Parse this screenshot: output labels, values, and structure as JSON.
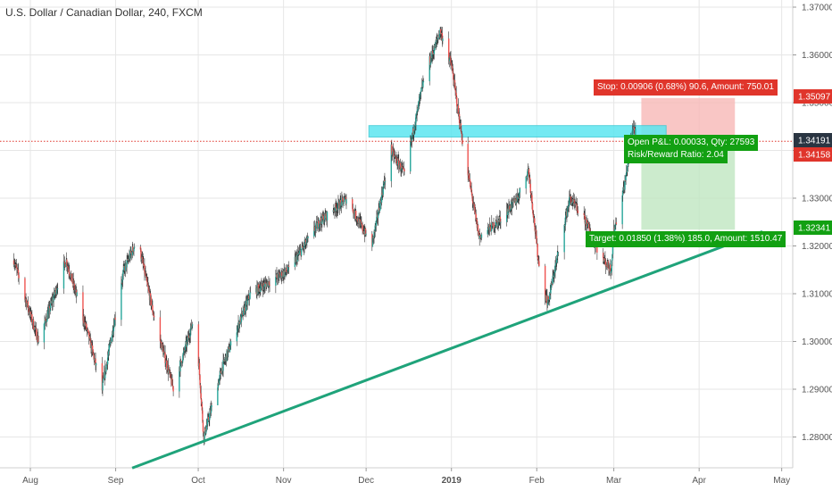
{
  "chart_data": {
    "type": "candlestick",
    "title": "U.S. Dollar / Canadian Dollar, 240, FXCM",
    "x_axis": {
      "tick_labels": [
        "Aug",
        "Sep",
        "Oct",
        "Nov",
        "Dec",
        "2019",
        "Feb",
        "Mar",
        "Apr",
        "May"
      ]
    },
    "y_axis": {
      "tick_labels": [
        "1.37000",
        "1.36000",
        "1.35000",
        "1.34000",
        "1.33000",
        "1.32000",
        "1.31000",
        "1.30000",
        "1.29000",
        "1.28000"
      ],
      "ylim": [
        1.2735,
        1.3715
      ]
    },
    "price_path": [
      {
        "date": "2018-07-26",
        "price": 1.317
      },
      {
        "date": "2018-08-04",
        "price": 1.3
      },
      {
        "date": "2018-08-14",
        "price": 1.317
      },
      {
        "date": "2018-08-22",
        "price": 1.3015
      },
      {
        "date": "2018-08-27",
        "price": 1.29
      },
      {
        "date": "2018-09-04",
        "price": 1.315
      },
      {
        "date": "2018-09-09",
        "price": 1.3215
      },
      {
        "date": "2018-09-15",
        "price": 1.305
      },
      {
        "date": "2018-09-22",
        "price": 1.29
      },
      {
        "date": "2018-09-30",
        "price": 1.306
      },
      {
        "date": "2018-10-03",
        "price": 1.28
      },
      {
        "date": "2018-10-10",
        "price": 1.295
      },
      {
        "date": "2018-10-20",
        "price": 1.31
      },
      {
        "date": "2018-11-03",
        "price": 1.315
      },
      {
        "date": "2018-11-14",
        "price": 1.325
      },
      {
        "date": "2018-11-24",
        "price": 1.33
      },
      {
        "date": "2018-12-03",
        "price": 1.32
      },
      {
        "date": "2018-12-10",
        "price": 1.34
      },
      {
        "date": "2018-12-15",
        "price": 1.335
      },
      {
        "date": "2018-12-22",
        "price": 1.355
      },
      {
        "date": "2018-12-28",
        "price": 1.365
      },
      {
        "date": "2019-01-01",
        "price": 1.358
      },
      {
        "date": "2019-01-05",
        "price": 1.342
      },
      {
        "date": "2019-01-11",
        "price": 1.322
      },
      {
        "date": "2019-01-18",
        "price": 1.325
      },
      {
        "date": "2019-01-25",
        "price": 1.33
      },
      {
        "date": "2019-01-29",
        "price": 1.336
      },
      {
        "date": "2019-02-02",
        "price": 1.315
      },
      {
        "date": "2019-02-05",
        "price": 1.308
      },
      {
        "date": "2019-02-13",
        "price": 1.33
      },
      {
        "date": "2019-02-19",
        "price": 1.325
      },
      {
        "date": "2019-02-24",
        "price": 1.318
      },
      {
        "date": "2019-02-28",
        "price": 1.315
      },
      {
        "date": "2019-03-01",
        "price": 1.323
      },
      {
        "date": "2019-03-05",
        "price": 1.333
      },
      {
        "date": "2019-03-08",
        "price": 1.345
      },
      {
        "date": "2019-03-10",
        "price": 1.342
      }
    ],
    "trendline": {
      "color": "#1fa37a",
      "points": [
        {
          "date": "2018-09-07",
          "price": 1.2735
        },
        {
          "date": "2019-04-24",
          "price": 1.323
        }
      ]
    },
    "zone": {
      "color": "#5ce6f0",
      "start": "2018-12-02",
      "end": "2019-03-20",
      "top": 1.3452,
      "bottom": 1.3428
    },
    "position": {
      "start": "2019-03-11",
      "end": "2019-04-14",
      "entry": 1.34191,
      "stop": 1.35097,
      "target": 1.32341
    },
    "current_price_line": 1.34191,
    "price_tags": [
      {
        "price": 1.35097,
        "label": "1.35097",
        "color": "#e0352b"
      },
      {
        "price": 1.34191,
        "label": "1.34191",
        "color": "#2a3542"
      },
      {
        "price": 1.34158,
        "label": "1.34158",
        "color": "#e0352b"
      },
      {
        "price": 1.32341,
        "label": "1.32341",
        "color": "#12a012"
      }
    ],
    "labels": {
      "stop": "Stop: 0.00906 (0.68%) 90.6, Amount: 750.01",
      "open_pl": "Open P&L: 0.00033, Qty: 27593",
      "risk_reward": "Risk/Reward Ratio: 2.04",
      "target": "Target: 0.01850 (1.38%) 185.0, Amount: 1510.47"
    },
    "colors": {
      "up": "#26a69a",
      "down": "#ef5350",
      "grid": "#e6e6e6",
      "stop_fill": "#f7b8b6",
      "target_fill": "#bfe6c0",
      "stop_tag": "#e0352b",
      "target_tag": "#12a012",
      "current_line": "#e0352b"
    },
    "grid": true
  }
}
